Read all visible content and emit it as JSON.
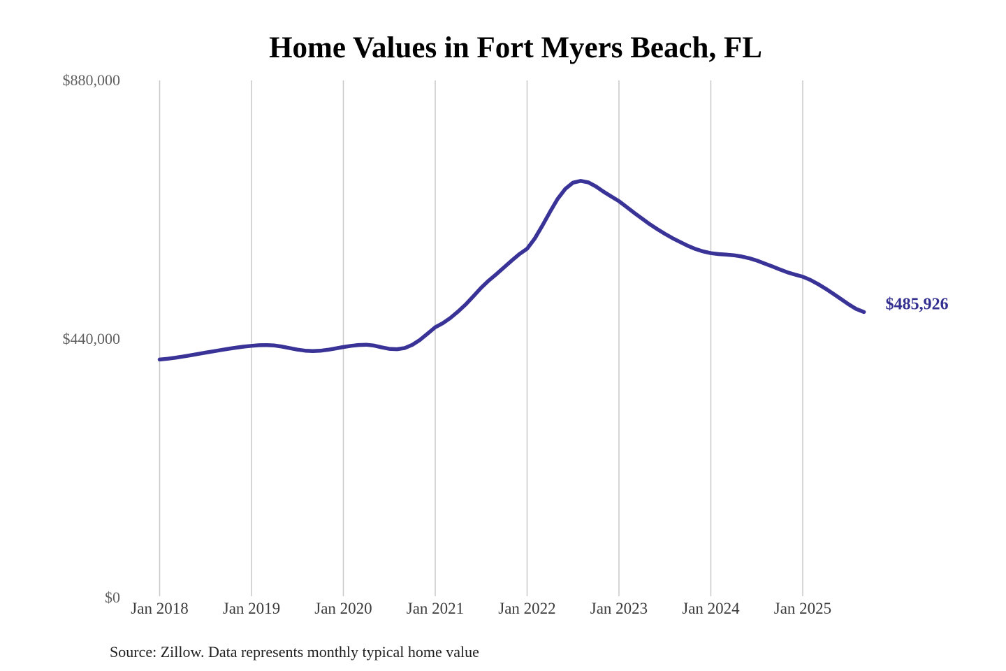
{
  "title": "Home Values in Fort Myers Beach, FL",
  "source_note": "Source: Zillow. Data represents monthly typical home value",
  "end_label": "$485,926",
  "colors": {
    "line": "#3a3397",
    "end_label": "#332f90",
    "gridline": "#c8c8c8",
    "y_label": "#5f5f5f",
    "x_label": "#3c3c3c",
    "title": "#000000",
    "source": "#1f1f1f",
    "background": "#ffffff"
  },
  "chart_data": {
    "type": "line",
    "title": "Home Values in Fort Myers Beach, FL",
    "x_start": "Jan 2018",
    "x_end": "Sep 2025",
    "x_interval": "month",
    "x_tick_labels": [
      "Jan 2018",
      "Jan 2019",
      "Jan 2020",
      "Jan 2021",
      "Jan 2022",
      "Jan 2023",
      "Jan 2024",
      "Jan 2025"
    ],
    "x_tick_month_step": 12,
    "y_ticks": [
      {
        "label": "$880,000",
        "value": 880000
      },
      {
        "label": "$440,000",
        "value": 440000
      },
      {
        "label": "$0",
        "value": 0
      }
    ],
    "ylim": [
      0,
      880000
    ],
    "grid": "vertical-only",
    "legend": "none",
    "end_value": 485926,
    "end_value_label": "$485,926",
    "series": [
      {
        "name": "Typical home value",
        "values": [
          405000,
          406400,
          408000,
          410000,
          412200,
          414500,
          416800,
          419000,
          421200,
          423300,
          425300,
          427000,
          428400,
          429400,
          429700,
          429000,
          427000,
          424400,
          421900,
          420100,
          419400,
          420000,
          421700,
          424000,
          426300,
          428300,
          429800,
          430300,
          428800,
          425800,
          423200,
          422600,
          424500,
          430000,
          438500,
          449000,
          460000,
          467000,
          476000,
          487000,
          499000,
          513000,
          527000,
          539500,
          550500,
          562000,
          573500,
          584500,
          593500,
          611000,
          633000,
          656500,
          678500,
          695500,
          706000,
          709000,
          706500,
          699500,
          690500,
          682500,
          674500,
          664500,
          654500,
          645000,
          635500,
          627000,
          619000,
          611500,
          605000,
          598500,
          593000,
          589000,
          586000,
          584500,
          583500,
          582500,
          580500,
          577500,
          573500,
          568500,
          563500,
          558500,
          553500,
          549500,
          546000,
          540500,
          533500,
          525500,
          517000,
          508000,
          499000,
          491000,
          485926
        ]
      }
    ]
  }
}
